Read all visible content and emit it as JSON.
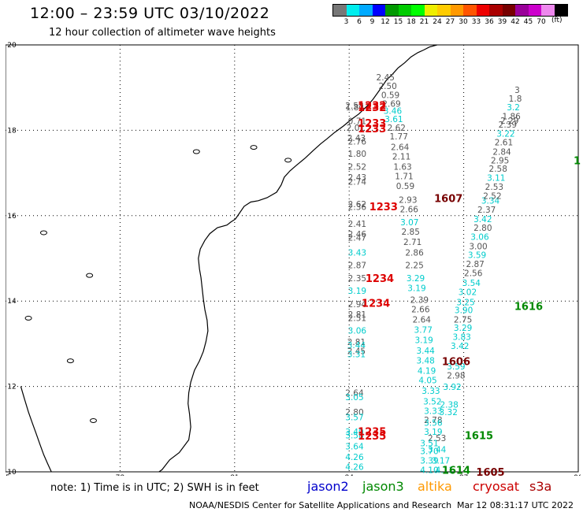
{
  "header": {
    "title": "12:00 – 23:59 UTC 03/10/2022",
    "subtitle": "12 hour collection of altimeter wave heights"
  },
  "legend": {
    "colors": [
      "#777777",
      "#00eeee",
      "#00aaff",
      "#0000ff",
      "#009900",
      "#00cc00",
      "#00ff00",
      "#eeee00",
      "#ffcc00",
      "#ff9900",
      "#ff5500",
      "#ee0000",
      "#aa0000",
      "#770000",
      "#990099",
      "#cc00cc",
      "#ee88ee",
      "#000000"
    ],
    "labels": [
      "3",
      "6",
      "9",
      "12",
      "15",
      "18",
      "21",
      "24",
      "27",
      "30",
      "33",
      "36",
      "39",
      "42",
      "45",
      "70"
    ],
    "unit": "(ft)"
  },
  "axes": {
    "x_ticks": [
      "75",
      "78",
      "81",
      "84",
      "87",
      "90"
    ],
    "y_ticks": [
      "20",
      "18",
      "16",
      "14",
      "12",
      "10"
    ],
    "x_range": [
      75,
      90
    ],
    "y_range": [
      10,
      20
    ]
  },
  "observations": [
    {
      "lon": 84.95,
      "lat": 19.24,
      "v": "2.45",
      "c": "#555555"
    },
    {
      "lon": 85.01,
      "lat": 19.04,
      "v": "2.50",
      "c": "#555555"
    },
    {
      "lon": 85.08,
      "lat": 18.83,
      "v": "0.59",
      "c": "#555555"
    },
    {
      "lon": 85.11,
      "lat": 18.63,
      "v": "2.69",
      "c": "#555555"
    },
    {
      "lon": 84.14,
      "lat": 18.58,
      "v": "2.58",
      "c": "#555555"
    },
    {
      "lon": 84.15,
      "lat": 18.54,
      "v": "1.82",
      "c": "#555555"
    },
    {
      "lon": 85.14,
      "lat": 18.46,
      "v": "3.46",
      "c": "#00cccc"
    },
    {
      "lon": 85.17,
      "lat": 18.27,
      "v": "3.61",
      "c": "#00cccc"
    },
    {
      "lon": 84.21,
      "lat": 18.22,
      "v": "0.71",
      "c": "#555555"
    },
    {
      "lon": 84.17,
      "lat": 18.06,
      "v": "2.01",
      "c": "#555555"
    },
    {
      "lon": 85.24,
      "lat": 18.06,
      "v": "2.62",
      "c": "#555555"
    },
    {
      "lon": 85.3,
      "lat": 17.86,
      "v": "1.77",
      "c": "#555555"
    },
    {
      "lon": 84.19,
      "lat": 17.82,
      "v": "2.43",
      "c": "#555555"
    },
    {
      "lon": 84.21,
      "lat": 17.74,
      "v": "2.76",
      "c": "#555555"
    },
    {
      "lon": 85.33,
      "lat": 17.61,
      "v": "2.64",
      "c": "#555555"
    },
    {
      "lon": 84.21,
      "lat": 17.45,
      "v": "1.80",
      "c": "#555555"
    },
    {
      "lon": 85.37,
      "lat": 17.39,
      "v": "2.11",
      "c": "#555555"
    },
    {
      "lon": 84.21,
      "lat": 17.15,
      "v": "2.52",
      "c": "#555555"
    },
    {
      "lon": 85.4,
      "lat": 17.15,
      "v": "1.63",
      "c": "#555555"
    },
    {
      "lon": 84.21,
      "lat": 16.9,
      "v": "2.43",
      "c": "#555555"
    },
    {
      "lon": 84.21,
      "lat": 16.8,
      "v": "2.74",
      "c": "#555555"
    },
    {
      "lon": 85.44,
      "lat": 16.93,
      "v": "1.71",
      "c": "#555555"
    },
    {
      "lon": 85.47,
      "lat": 16.7,
      "v": "0.59",
      "c": "#555555"
    },
    {
      "lon": 85.54,
      "lat": 16.37,
      "v": "2.93",
      "c": "#555555"
    },
    {
      "lon": 84.21,
      "lat": 16.27,
      "v": "2.62",
      "c": "#555555"
    },
    {
      "lon": 84.21,
      "lat": 16.21,
      "v": "2.36",
      "c": "#555555"
    },
    {
      "lon": 85.57,
      "lat": 16.15,
      "v": "2.66",
      "c": "#555555"
    },
    {
      "lon": 85.58,
      "lat": 15.85,
      "v": "3.07",
      "c": "#00cccc"
    },
    {
      "lon": 84.21,
      "lat": 15.81,
      "v": "2.41",
      "c": "#555555"
    },
    {
      "lon": 85.61,
      "lat": 15.63,
      "v": "2.85",
      "c": "#555555"
    },
    {
      "lon": 84.21,
      "lat": 15.57,
      "v": "2.46",
      "c": "#555555"
    },
    {
      "lon": 84.21,
      "lat": 15.49,
      "v": "2.47",
      "c": "#555555"
    },
    {
      "lon": 85.66,
      "lat": 15.39,
      "v": "2.71",
      "c": "#555555"
    },
    {
      "lon": 84.21,
      "lat": 15.14,
      "v": "3.43",
      "c": "#00cccc"
    },
    {
      "lon": 85.71,
      "lat": 15.14,
      "v": "2.86",
      "c": "#555555"
    },
    {
      "lon": 84.21,
      "lat": 14.84,
      "v": "2.87",
      "c": "#555555"
    },
    {
      "lon": 85.71,
      "lat": 14.84,
      "v": "2.25",
      "c": "#555555"
    },
    {
      "lon": 84.21,
      "lat": 14.54,
      "v": "2.35",
      "c": "#555555"
    },
    {
      "lon": 85.74,
      "lat": 14.54,
      "v": "3.29",
      "c": "#00cccc"
    },
    {
      "lon": 84.21,
      "lat": 14.24,
      "v": "3.19",
      "c": "#00cccc"
    },
    {
      "lon": 85.77,
      "lat": 14.31,
      "v": "3.19",
      "c": "#00cccc"
    },
    {
      "lon": 85.84,
      "lat": 14.03,
      "v": "2.39",
      "c": "#555555"
    },
    {
      "lon": 84.21,
      "lat": 13.93,
      "v": "2.94",
      "c": "#555555"
    },
    {
      "lon": 85.87,
      "lat": 13.81,
      "v": "2.66",
      "c": "#555555"
    },
    {
      "lon": 84.21,
      "lat": 13.69,
      "v": "2.81",
      "c": "#555555"
    },
    {
      "lon": 84.21,
      "lat": 13.61,
      "v": "2.51",
      "c": "#555555"
    },
    {
      "lon": 85.9,
      "lat": 13.57,
      "v": "2.64",
      "c": "#555555"
    },
    {
      "lon": 84.21,
      "lat": 13.31,
      "v": "3.06",
      "c": "#00cccc"
    },
    {
      "lon": 85.94,
      "lat": 13.33,
      "v": "3.77",
      "c": "#00cccc"
    },
    {
      "lon": 84.19,
      "lat": 13.04,
      "v": "2.81",
      "c": "#555555"
    },
    {
      "lon": 85.96,
      "lat": 13.09,
      "v": "3.19",
      "c": "#00cccc"
    },
    {
      "lon": 84.19,
      "lat": 12.97,
      "v": "3.44",
      "c": "#00cccc"
    },
    {
      "lon": 84.19,
      "lat": 12.83,
      "v": "2.45",
      "c": "#555555"
    },
    {
      "lon": 86.0,
      "lat": 12.84,
      "v": "3.44",
      "c": "#00cccc"
    },
    {
      "lon": 84.19,
      "lat": 12.76,
      "v": "3.31",
      "c": "#00cccc"
    },
    {
      "lon": 86.0,
      "lat": 12.61,
      "v": "3.48",
      "c": "#00cccc"
    },
    {
      "lon": 86.03,
      "lat": 12.37,
      "v": "4.19",
      "c": "#00cccc"
    },
    {
      "lon": 86.06,
      "lat": 12.15,
      "v": "4.05",
      "c": "#00cccc"
    },
    {
      "lon": 84.14,
      "lat": 11.85,
      "v": "2.64",
      "c": "#555555"
    },
    {
      "lon": 86.14,
      "lat": 11.9,
      "v": "3.33",
      "c": "#00cccc"
    },
    {
      "lon": 84.14,
      "lat": 11.75,
      "v": "3.05",
      "c": "#00cccc"
    },
    {
      "lon": 86.18,
      "lat": 11.65,
      "v": "3.52",
      "c": "#00cccc"
    },
    {
      "lon": 86.2,
      "lat": 11.43,
      "v": "3.33",
      "c": "#00cccc"
    },
    {
      "lon": 84.14,
      "lat": 11.4,
      "v": "2.80",
      "c": "#555555"
    },
    {
      "lon": 84.14,
      "lat": 11.28,
      "v": "3.57",
      "c": "#00cccc"
    },
    {
      "lon": 86.2,
      "lat": 11.22,
      "v": "2.78",
      "c": "#555555"
    },
    {
      "lon": 86.2,
      "lat": 11.15,
      "v": "3.56",
      "c": "#00cccc"
    },
    {
      "lon": 84.14,
      "lat": 10.94,
      "v": "3.40",
      "c": "#00cccc"
    },
    {
      "lon": 84.14,
      "lat": 10.86,
      "v": "3.58",
      "c": "#00cccc"
    },
    {
      "lon": 86.2,
      "lat": 10.94,
      "v": "3.19",
      "c": "#00cccc"
    },
    {
      "lon": 86.3,
      "lat": 10.79,
      "v": "2.53",
      "c": "#555555"
    },
    {
      "lon": 86.1,
      "lat": 10.67,
      "v": "3.51",
      "c": "#00cccc"
    },
    {
      "lon": 84.14,
      "lat": 10.6,
      "v": "3.64",
      "c": "#00cccc"
    },
    {
      "lon": 86.3,
      "lat": 10.53,
      "v": "3.44",
      "c": "#00cccc"
    },
    {
      "lon": 86.1,
      "lat": 10.49,
      "v": "3.70",
      "c": "#00cccc"
    },
    {
      "lon": 84.14,
      "lat": 10.35,
      "v": "4.26",
      "c": "#00cccc"
    },
    {
      "lon": 86.1,
      "lat": 10.27,
      "v": "3.39",
      "c": "#00cccc"
    },
    {
      "lon": 86.4,
      "lat": 10.27,
      "v": "3.17",
      "c": "#00cccc"
    },
    {
      "lon": 84.14,
      "lat": 10.12,
      "v": "4.26",
      "c": "#00cccc"
    },
    {
      "lon": 86.1,
      "lat": 10.05,
      "v": "4.10",
      "c": "#00cccc"
    },
    {
      "lon": 86.5,
      "lat": 10.05,
      "v": "4.11",
      "c": "#00cccc"
    },
    {
      "lon": 86.62,
      "lat": 11.58,
      "v": "2.38",
      "c": "#00cccc"
    },
    {
      "lon": 86.6,
      "lat": 11.4,
      "v": "3.32",
      "c": "#00cccc"
    },
    {
      "lon": 86.7,
      "lat": 11.99,
      "v": "3.92",
      "c": "#00cccc"
    },
    {
      "lon": 86.8,
      "lat": 12.26,
      "v": "2.98",
      "c": "#555555"
    },
    {
      "lon": 86.8,
      "lat": 12.47,
      "v": "3.59",
      "c": "#00cccc"
    },
    {
      "lon": 86.9,
      "lat": 12.95,
      "v": "3.42",
      "c": "#00cccc"
    },
    {
      "lon": 86.95,
      "lat": 13.16,
      "v": "3.83",
      "c": "#00cccc"
    },
    {
      "lon": 86.98,
      "lat": 13.38,
      "v": "3.29",
      "c": "#00cccc"
    },
    {
      "lon": 86.98,
      "lat": 13.57,
      "v": "2.75",
      "c": "#555555"
    },
    {
      "lon": 87.0,
      "lat": 13.79,
      "v": "3.90",
      "c": "#00cccc"
    },
    {
      "lon": 87.05,
      "lat": 13.98,
      "v": "3.25",
      "c": "#00cccc"
    },
    {
      "lon": 87.1,
      "lat": 14.22,
      "v": "3.02",
      "c": "#00cccc"
    },
    {
      "lon": 87.2,
      "lat": 14.43,
      "v": "3.54",
      "c": "#00cccc"
    },
    {
      "lon": 87.25,
      "lat": 14.66,
      "v": "2.56",
      "c": "#555555"
    },
    {
      "lon": 87.3,
      "lat": 14.87,
      "v": "2.87",
      "c": "#555555"
    },
    {
      "lon": 87.35,
      "lat": 15.08,
      "v": "3.59",
      "c": "#00cccc"
    },
    {
      "lon": 87.38,
      "lat": 15.29,
      "v": "3.00",
      "c": "#555555"
    },
    {
      "lon": 87.42,
      "lat": 15.51,
      "v": "3.06",
      "c": "#00cccc"
    },
    {
      "lon": 87.5,
      "lat": 15.72,
      "v": "2.80",
      "c": "#555555"
    },
    {
      "lon": 87.5,
      "lat": 15.92,
      "v": "3.42",
      "c": "#00cccc"
    },
    {
      "lon": 87.6,
      "lat": 16.14,
      "v": "2.37",
      "c": "#555555"
    },
    {
      "lon": 87.7,
      "lat": 16.36,
      "v": "3.34",
      "c": "#00cccc"
    },
    {
      "lon": 87.75,
      "lat": 16.47,
      "v": "2.52",
      "c": "#555555"
    },
    {
      "lon": 87.8,
      "lat": 16.68,
      "v": "2.53",
      "c": "#555555"
    },
    {
      "lon": 87.85,
      "lat": 16.89,
      "v": "3.11",
      "c": "#00cccc"
    },
    {
      "lon": 87.9,
      "lat": 17.1,
      "v": "2.58",
      "c": "#555555"
    },
    {
      "lon": 87.95,
      "lat": 17.3,
      "v": "2.95",
      "c": "#555555"
    },
    {
      "lon": 88.0,
      "lat": 17.5,
      "v": "2.84",
      "c": "#555555"
    },
    {
      "lon": 88.05,
      "lat": 17.72,
      "v": "2.61",
      "c": "#555555"
    },
    {
      "lon": 88.1,
      "lat": 17.92,
      "v": "3.22",
      "c": "#00cccc"
    },
    {
      "lon": 88.15,
      "lat": 18.14,
      "v": "2.39",
      "c": "#555555"
    },
    {
      "lon": 88.2,
      "lat": 18.23,
      "v": "2.29",
      "c": "#555555"
    },
    {
      "lon": 88.25,
      "lat": 18.33,
      "v": "1.86",
      "c": "#555555"
    },
    {
      "lon": 88.3,
      "lat": 18.54,
      "v": "3.2",
      "c": "#00cccc"
    },
    {
      "lon": 88.35,
      "lat": 18.75,
      "v": "1.8",
      "c": "#555555"
    },
    {
      "lon": 88.4,
      "lat": 18.95,
      "v": "3",
      "c": "#555555"
    }
  ],
  "passes": [
    {
      "lon": 84.6,
      "lat": 18.59,
      "text": "1232",
      "c": "#dd0000"
    },
    {
      "lon": 84.6,
      "lat": 18.54,
      "text": "1232",
      "c": "#dd0000"
    },
    {
      "lon": 84.6,
      "lat": 18.17,
      "text": "1233",
      "c": "#dd0000"
    },
    {
      "lon": 84.6,
      "lat": 18.04,
      "text": "1233",
      "c": "#dd0000"
    },
    {
      "lon": 84.9,
      "lat": 16.22,
      "text": "1233",
      "c": "#dd0000"
    },
    {
      "lon": 84.8,
      "lat": 14.54,
      "text": "1234",
      "c": "#dd0000"
    },
    {
      "lon": 84.7,
      "lat": 13.96,
      "text": "1234",
      "c": "#dd0000"
    },
    {
      "lon": 84.6,
      "lat": 10.95,
      "text": "1235",
      "c": "#dd0000"
    },
    {
      "lon": 84.6,
      "lat": 10.85,
      "text": "1235",
      "c": "#dd0000"
    },
    {
      "lon": 86.6,
      "lat": 16.41,
      "text": "1607",
      "c": "#770000"
    },
    {
      "lon": 86.8,
      "lat": 12.59,
      "text": "1606",
      "c": "#770000"
    },
    {
      "lon": 87.7,
      "lat": 10.0,
      "text": "1605",
      "c": "#770000"
    },
    {
      "lon": 88.7,
      "lat": 13.88,
      "text": "1616",
      "c": "#008800"
    },
    {
      "lon": 87.4,
      "lat": 10.86,
      "text": "1615",
      "c": "#008800"
    },
    {
      "lon": 86.8,
      "lat": 10.05,
      "text": "1614",
      "c": "#008800"
    },
    {
      "lon": 89.97,
      "lat": 17.3,
      "text": "1",
      "c": "#008800"
    }
  ],
  "footer": {
    "note": "note: 1) Time is in UTC; 2) SWH is in feet",
    "satellites": [
      {
        "name": "jason2",
        "color": "#0000cc"
      },
      {
        "name": "jason3",
        "color": "#008800"
      },
      {
        "name": "altika",
        "color": "#ff9900"
      },
      {
        "name": "cryosat",
        "color": "#cc0000"
      },
      {
        "name": "s3a",
        "color": "#aa0000"
      }
    ],
    "credit": "NOAA/NESDIS Center for Satellite Applications and Research",
    "timestamp": "Mar 12 08:31:17 UTC 2022"
  }
}
